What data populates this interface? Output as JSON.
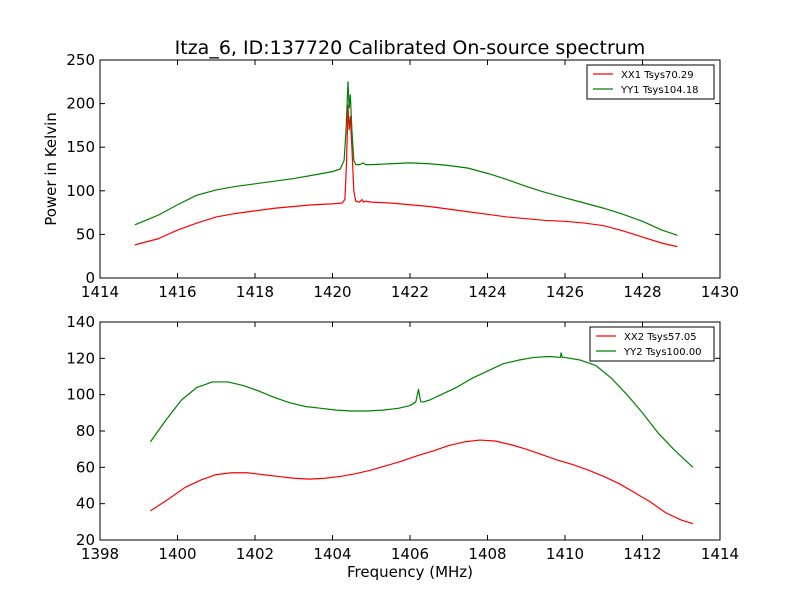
{
  "figure": {
    "title": "Itza_6, ID:137720 Calibrated On-source spectrum",
    "ylabel": "Power in Kelvin",
    "xlabel": "Frequency (MHz)"
  },
  "colors": {
    "red": "#ff0000",
    "green": "#008000"
  },
  "chart_data": [
    {
      "type": "line",
      "title": "Itza_6, ID:137720 Calibrated On-source spectrum",
      "xlabel": "",
      "ylabel": "Power in Kelvin",
      "xlim": [
        1414,
        1430
      ],
      "ylim": [
        0,
        250
      ],
      "xticks": [
        1414,
        1416,
        1418,
        1420,
        1422,
        1424,
        1426,
        1428,
        1430
      ],
      "yticks": [
        0,
        50,
        100,
        150,
        200,
        250
      ],
      "xtick_labels": [
        "1414",
        "1416",
        "1418",
        "1420",
        "1422",
        "1424",
        "1426",
        "1428",
        "1430"
      ],
      "ytick_labels": [
        "0",
        "50",
        "100",
        "150",
        "200",
        "250"
      ],
      "grid": false,
      "legend_position": "top-right",
      "series": [
        {
          "name": "XX1 Tsys70.29",
          "color": "#ff0000",
          "x": [
            1414.9,
            1415.5,
            1416.0,
            1416.5,
            1417.0,
            1417.5,
            1418.0,
            1418.5,
            1419.0,
            1419.5,
            1420.0,
            1420.25,
            1420.32,
            1420.36,
            1420.4,
            1420.43,
            1420.46,
            1420.5,
            1420.55,
            1420.6,
            1420.7,
            1420.76,
            1420.8,
            1420.85,
            1421.0,
            1421.5,
            1422.0,
            1422.5,
            1423.0,
            1423.5,
            1424.0,
            1424.5,
            1425.0,
            1425.5,
            1426.0,
            1426.5,
            1427.0,
            1427.5,
            1428.0,
            1428.5,
            1428.9
          ],
          "y": [
            38,
            45,
            55,
            63,
            70,
            74,
            77,
            80,
            82,
            84,
            85,
            86,
            90,
            130,
            198,
            170,
            185,
            150,
            100,
            88,
            87,
            90,
            87,
            88,
            87,
            86,
            84,
            82,
            79,
            76,
            73,
            70,
            68,
            66,
            65,
            63,
            60,
            54,
            47,
            40,
            36
          ]
        },
        {
          "name": "YY1 Tsys104.18",
          "color": "#008000",
          "x": [
            1414.9,
            1415.5,
            1416.0,
            1416.5,
            1417.0,
            1417.5,
            1418.0,
            1418.5,
            1419.0,
            1419.5,
            1420.0,
            1420.2,
            1420.3,
            1420.35,
            1420.4,
            1420.43,
            1420.46,
            1420.5,
            1420.55,
            1420.6,
            1420.7,
            1420.8,
            1420.85,
            1421.0,
            1421.5,
            1422.0,
            1422.5,
            1423.0,
            1423.5,
            1424.0,
            1424.5,
            1425.0,
            1425.5,
            1426.0,
            1426.5,
            1427.0,
            1427.5,
            1428.0,
            1428.5,
            1428.9
          ],
          "y": [
            61,
            72,
            84,
            95,
            101,
            105,
            108,
            111,
            114,
            118,
            122,
            125,
            135,
            170,
            225,
            195,
            210,
            170,
            135,
            130,
            130,
            132,
            130,
            130,
            131,
            132,
            131,
            129,
            126,
            120,
            113,
            105,
            98,
            92,
            86,
            80,
            73,
            65,
            55,
            49
          ]
        }
      ]
    },
    {
      "type": "line",
      "title": "",
      "xlabel": "Frequency (MHz)",
      "ylabel": "",
      "xlim": [
        1398,
        1414
      ],
      "ylim": [
        20,
        140
      ],
      "xticks": [
        1398,
        1400,
        1402,
        1404,
        1406,
        1408,
        1410,
        1412,
        1414
      ],
      "yticks": [
        20,
        40,
        60,
        80,
        100,
        120,
        140
      ],
      "xtick_labels": [
        "1398",
        "1400",
        "1402",
        "1404",
        "1406",
        "1408",
        "1410",
        "1412",
        "1414"
      ],
      "ytick_labels": [
        "20",
        "40",
        "60",
        "80",
        "100",
        "120",
        "140"
      ],
      "grid": false,
      "legend_position": "top-right",
      "series": [
        {
          "name": "XX2 Tsys57.05",
          "color": "#ff0000",
          "x": [
            1399.3,
            1399.8,
            1400.2,
            1400.6,
            1401.0,
            1401.4,
            1401.8,
            1402.2,
            1402.6,
            1403.0,
            1403.4,
            1403.8,
            1404.2,
            1404.6,
            1405.0,
            1405.4,
            1405.8,
            1406.2,
            1406.6,
            1407.0,
            1407.4,
            1407.8,
            1408.2,
            1408.6,
            1409.0,
            1409.4,
            1409.8,
            1410.2,
            1410.6,
            1411.0,
            1411.4,
            1411.8,
            1412.2,
            1412.6,
            1413.0,
            1413.3
          ],
          "y": [
            36,
            43,
            49,
            53,
            56,
            57,
            57,
            56,
            55,
            54,
            53.5,
            54,
            55,
            56.5,
            58.5,
            61,
            63.5,
            66.5,
            69,
            72,
            74,
            75,
            74.5,
            72.5,
            70,
            67,
            64,
            61.5,
            58.5,
            55,
            51,
            46,
            41,
            35,
            31,
            29
          ]
        },
        {
          "name": "YY2 Tsys100.00",
          "color": "#008000",
          "x": [
            1399.3,
            1399.7,
            1400.1,
            1400.5,
            1400.9,
            1401.3,
            1401.7,
            1402.1,
            1402.5,
            1402.9,
            1403.3,
            1403.7,
            1404.1,
            1404.5,
            1404.9,
            1405.3,
            1405.7,
            1406.0,
            1406.15,
            1406.22,
            1406.25,
            1406.28,
            1406.35,
            1406.5,
            1406.8,
            1407.2,
            1407.6,
            1408.0,
            1408.4,
            1408.8,
            1409.2,
            1409.6,
            1409.88,
            1409.9,
            1409.93,
            1410.0,
            1410.4,
            1410.8,
            1411.2,
            1411.6,
            1412.0,
            1412.4,
            1412.8,
            1413.3
          ],
          "y": [
            74,
            86,
            97,
            104,
            107,
            107,
            105,
            102,
            98.5,
            95.5,
            93.5,
            92.5,
            91.5,
            91,
            91,
            91.5,
            92.5,
            94,
            96,
            103,
            99,
            96,
            96,
            97,
            100,
            104,
            109,
            113,
            117,
            119,
            120.5,
            121,
            120.5,
            123,
            120.5,
            120.5,
            119,
            116,
            109,
            100,
            90,
            79,
            70,
            60
          ]
        }
      ]
    }
  ]
}
